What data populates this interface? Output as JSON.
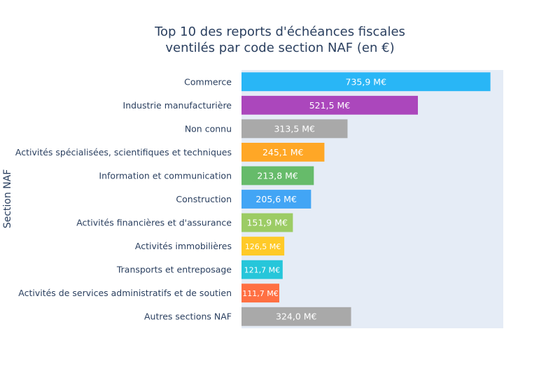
{
  "chart_data": {
    "type": "bar",
    "orientation": "horizontal",
    "title": [
      "Top 10 des reports d'échéances fiscales",
      "ventilés par code section NAF (en €)"
    ],
    "xlabel": "",
    "ylabel": "Section NAF",
    "xlim": [
      0,
      774
    ],
    "grid": false,
    "legend": "none",
    "plot_background": "#e5ecf6",
    "categories": [
      "Commerce",
      "Industrie manufacturière",
      "Non connu",
      "Activités spécialisées, scientifiques et techniques",
      "Information et communication",
      "Construction",
      "Activités financières et d'assurance",
      "Activités immobilières",
      "Transports et entreposage",
      "Activités de services administratifs et de soutien",
      "Autres sections NAF"
    ],
    "values": [
      735.9,
      521.5,
      313.5,
      245.1,
      213.8,
      205.6,
      151.9,
      126.5,
      121.7,
      111.7,
      324.0
    ],
    "value_labels": [
      "735,9 M€",
      "521,5 M€",
      "313,5 M€",
      "245,1 M€",
      "213,8 M€",
      "205,6 M€",
      "151,9 M€",
      "126,5 M€",
      "121,7 M€",
      "111,7 M€",
      "324,0 M€"
    ],
    "colors": [
      "#29b6f6",
      "#ab47bc",
      "#a9a9a9",
      "#ffa726",
      "#66bb6a",
      "#42a5f5",
      "#9ccc65",
      "#ffca28",
      "#26c6da",
      "#ff7043",
      "#a9a9a9"
    ]
  }
}
